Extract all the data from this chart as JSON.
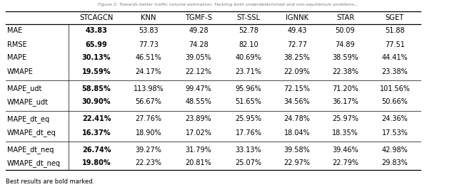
{
  "title_partial": "Figure 2: Towards better traffic volume estimation: Tackling both underdetermined and non-equilibrium problems...",
  "columns": [
    "STCAGCN",
    "KNN",
    "TGMF-S",
    "ST-SSL",
    "IGNNK",
    "STAR",
    "SGET"
  ],
  "rows": [
    {
      "metric": "MAE",
      "values": [
        "43.83",
        "53.83",
        "49.28",
        "52.78",
        "49.43",
        "50.09",
        "51.88"
      ],
      "bold": [
        true,
        false,
        false,
        false,
        false,
        false,
        false
      ]
    },
    {
      "metric": "RMSE",
      "values": [
        "65.99",
        "77.73",
        "74.28",
        "82.10",
        "72.77",
        "74.89",
        "77.51"
      ],
      "bold": [
        true,
        false,
        false,
        false,
        false,
        false,
        false
      ]
    },
    {
      "metric": "MAPE",
      "values": [
        "30.13%",
        "46.51%",
        "39.05%",
        "40.69%",
        "38.25%",
        "38.59%",
        "44.41%"
      ],
      "bold": [
        true,
        false,
        false,
        false,
        false,
        false,
        false
      ]
    },
    {
      "metric": "WMAPE",
      "values": [
        "19.59%",
        "24.17%",
        "22.12%",
        "23.71%",
        "22.09%",
        "22.38%",
        "23.38%"
      ],
      "bold": [
        true,
        false,
        false,
        false,
        false,
        false,
        false
      ]
    },
    {
      "metric": "MAPE_udt",
      "values": [
        "58.85%",
        "113.98%",
        "99.47%",
        "95.96%",
        "72.15%",
        "71.20%",
        "101.56%"
      ],
      "bold": [
        true,
        false,
        false,
        false,
        false,
        false,
        false
      ]
    },
    {
      "metric": "WMAPE_udt",
      "values": [
        "30.90%",
        "56.67%",
        "48.55%",
        "51.65%",
        "34.56%",
        "36.17%",
        "50.66%"
      ],
      "bold": [
        true,
        false,
        false,
        false,
        false,
        false,
        false
      ]
    },
    {
      "metric": "MAPE_dt_eq",
      "values": [
        "22.41%",
        "27.76%",
        "23.89%",
        "25.95%",
        "24.78%",
        "25.97%",
        "24.36%"
      ],
      "bold": [
        true,
        false,
        false,
        false,
        false,
        false,
        false
      ]
    },
    {
      "metric": "WMAPE_dt_eq",
      "values": [
        "16.37%",
        "18.90%",
        "17.02%",
        "17.76%",
        "18.04%",
        "18.35%",
        "17.53%"
      ],
      "bold": [
        true,
        false,
        false,
        false,
        false,
        false,
        false
      ]
    },
    {
      "metric": "MAPE_dt_neq",
      "values": [
        "26.74%",
        "39.27%",
        "31.79%",
        "33.13%",
        "39.58%",
        "39.46%",
        "42.98%"
      ],
      "bold": [
        true,
        false,
        false,
        false,
        false,
        false,
        false
      ]
    },
    {
      "metric": "WMAPE_dt_neq",
      "values": [
        "19.80%",
        "22.23%",
        "20.81%",
        "25.07%",
        "22.97%",
        "22.79%",
        "29.83%"
      ],
      "bold": [
        true,
        false,
        false,
        false,
        false,
        false,
        false
      ]
    }
  ],
  "group_separators_after": [
    3,
    5,
    7
  ],
  "footnote": "Best results are bold marked.",
  "bg_color": "#ffffff",
  "text_color": "#000000",
  "title_fontsize": 4.5,
  "header_fontsize": 7.2,
  "data_fontsize": 7.0,
  "footnote_fontsize": 6.0
}
